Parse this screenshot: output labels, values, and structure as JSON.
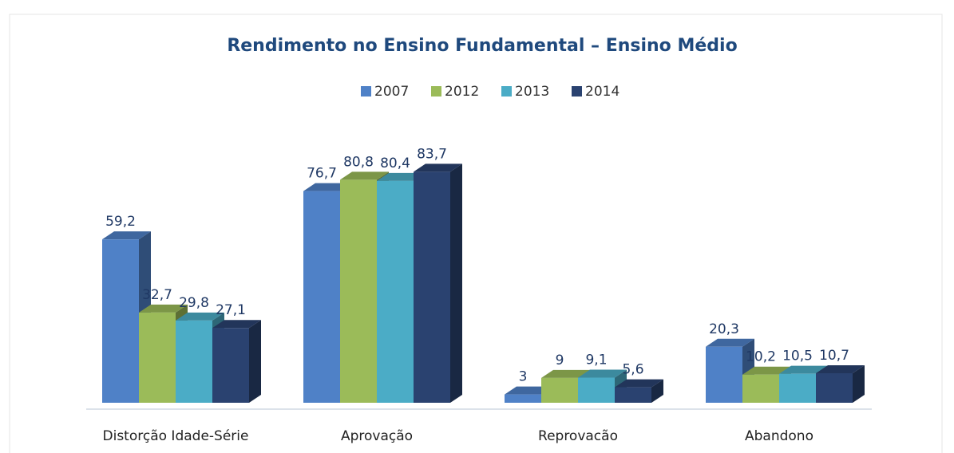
{
  "chart_data": {
    "type": "bar3d",
    "title": "Rendimento no Ensino Fundamental – Ensino Médio",
    "categories": [
      "Distorção Idade-Série",
      "Aprovação",
      "Reprovacão",
      "Abandono"
    ],
    "series": [
      {
        "name": "2007",
        "color": "#4f81c7",
        "values": [
          59.2,
          76.7,
          3,
          20.3
        ],
        "value_labels": [
          "59,2",
          "76,7",
          "3",
          "20,3"
        ]
      },
      {
        "name": "2012",
        "color": "#9bbb59",
        "values": [
          32.7,
          80.8,
          9,
          10.2
        ],
        "value_labels": [
          "32,7",
          "80,8",
          "9",
          "10,2"
        ]
      },
      {
        "name": "2013",
        "color": "#4bacc6",
        "values": [
          29.8,
          80.4,
          9.1,
          10.5
        ],
        "value_labels": [
          "29,8",
          "80,4",
          "9,1",
          "10,5"
        ]
      },
      {
        "name": "2014",
        "color": "#2a4270",
        "values": [
          27.1,
          83.7,
          5.6,
          10.7
        ],
        "value_labels": [
          "27,1",
          "83,7",
          "5,6",
          "10,7"
        ]
      }
    ],
    "legend": "top"
  }
}
